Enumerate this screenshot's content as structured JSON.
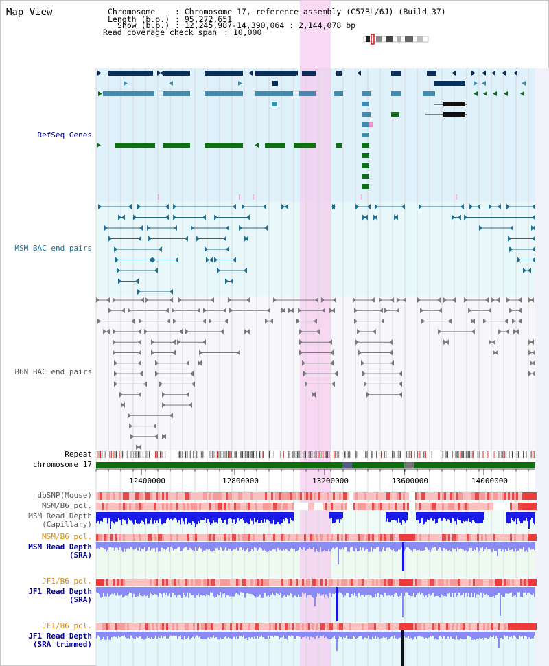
{
  "view_title": "Map View",
  "info": {
    "chromosome_key": "Chromosome",
    "chromosome_value": ": Chromosome 17, reference assembly (C57BL/6J) (Build 37)",
    "length_key": "Length (b.p.)",
    "length_value": ": 95,272,651",
    "show_key": "Show (b.p.)",
    "show_value": ": 12,245,987-14,390,064 : 2,144,078 bp",
    "coverage_key": "Read coverage check span",
    "coverage_value": ": 10,000"
  },
  "tracks": {
    "refseq": "RefSeq Genes",
    "msm_bac": "MSM BAC end pairs",
    "b6n_bac": "B6N BAC end pairs",
    "repeat": "Repeat",
    "chromosome": "chromosome 17",
    "dbsnp": "dbSNP(Mouse)",
    "msm_b6_pol_1": "MSM/B6 pol.",
    "msm_depth_cap_1": "MSM Read Depth",
    "msm_depth_cap_2": "(Capillary)",
    "msm_b6_pol_2": "MSM/B6 pol.",
    "msm_depth_sra_1": "MSM Read Depth",
    "msm_depth_sra_2": "(SRA)",
    "jf1_b6_pol_1": "JF1/B6 pol.",
    "jf1_depth_sra_1": "JF1 Read Depth",
    "jf1_depth_sra_2": "(SRA)",
    "jf1_b6_pol_2": "JF1/B6 pol.",
    "jf1_depth_trim_1": "JF1 Read Depth",
    "jf1_depth_trim_2": "(SRA trimmed)"
  },
  "axis_ticks": [
    "12400000",
    "12800000",
    "13200000",
    "13600000",
    "14000000"
  ],
  "colors": {
    "refseq_bg": "#dff1fb",
    "msm_bg": "#e8f7f9",
    "b6n_bg": "#f7f7fb",
    "highlight": "#f7c9ee",
    "gene_dark": "#0a2e5e",
    "gene_mid": "#3f8cb0",
    "gene_green": "#0f6e14",
    "msm_line": "#1f6d8f",
    "b6n_line": "#7a7a7a",
    "chrom_green": "#0e6e0e",
    "label_navy": "#00008b",
    "label_teal": "#1f6d8f",
    "label_orange": "#e08a00",
    "depth_blue": "#1414e6",
    "depth_light": "#8a8af5"
  }
}
